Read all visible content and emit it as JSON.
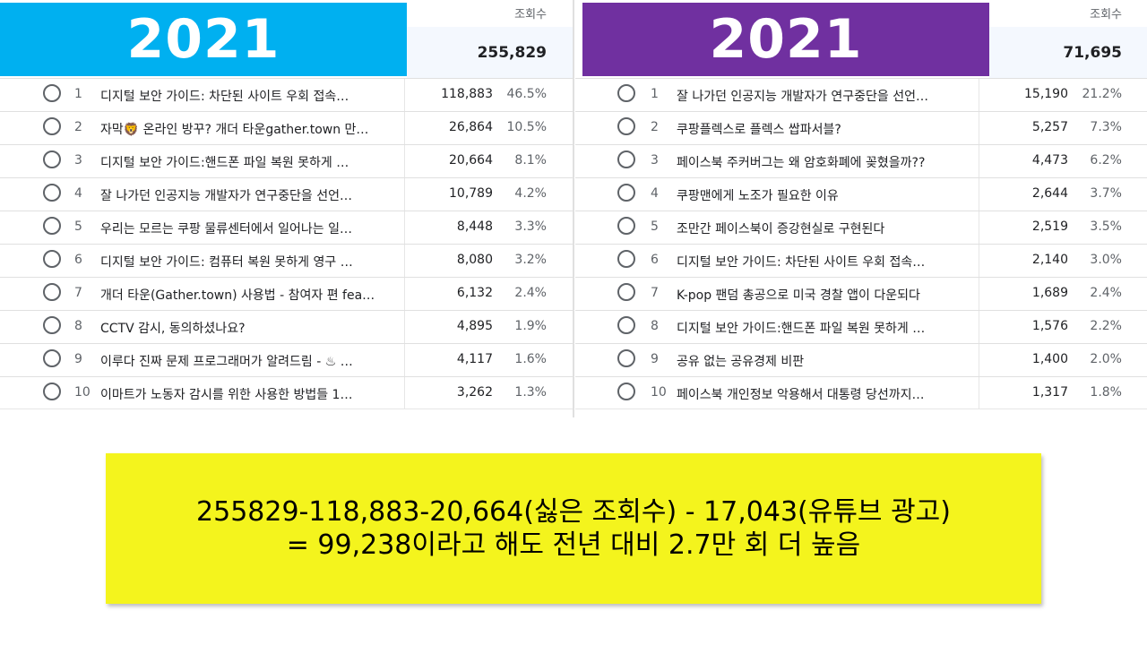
{
  "left": {
    "banner": "2021",
    "banner_color": "#00b0f0",
    "views_label": "조회수",
    "total": "255,829",
    "rows": [
      {
        "rank": "1",
        "title": "디지털 보안 가이드: 차단된 사이트 우회 접속…",
        "views": "118,883",
        "pct": "46.5%"
      },
      {
        "rank": "2",
        "title": "자막🦁 온라인 방꾸? 개더 타운gather.town 만…",
        "views": "26,864",
        "pct": "10.5%"
      },
      {
        "rank": "3",
        "title": "디지털 보안 가이드:핸드폰 파일 복원 못하게 …",
        "views": "20,664",
        "pct": "8.1%"
      },
      {
        "rank": "4",
        "title": "잘 나가던 인공지능 개발자가 연구중단을 선언…",
        "views": "10,789",
        "pct": "4.2%"
      },
      {
        "rank": "5",
        "title": "우리는 모르는 쿠팡 물류센터에서 일어나는 일…",
        "views": "8,448",
        "pct": "3.3%"
      },
      {
        "rank": "6",
        "title": "디지털 보안 가이드: 컴퓨터 복원 못하게 영구 …",
        "views": "8,080",
        "pct": "3.2%"
      },
      {
        "rank": "7",
        "title": "개더 타운(Gather.town) 사용법 - 참여자 편 fea…",
        "views": "6,132",
        "pct": "2.4%"
      },
      {
        "rank": "8",
        "title": "CCTV 감시, 동의하셨나요?",
        "views": "4,895",
        "pct": "1.9%"
      },
      {
        "rank": "9",
        "title": "이루다 진짜 문제 프로그래머가 알려드림 - ♨ …",
        "views": "4,117",
        "pct": "1.6%"
      },
      {
        "rank": "10",
        "title": "이마트가 노동자 감시를 위한 사용한 방법들 1…",
        "views": "3,262",
        "pct": "1.3%"
      }
    ]
  },
  "right": {
    "banner": "2021",
    "banner_color": "#7030a0",
    "views_label": "조회수",
    "total": "71,695",
    "rows": [
      {
        "rank": "1",
        "title": "잘 나가던 인공지능 개발자가 연구중단을 선언…",
        "views": "15,190",
        "pct": "21.2%"
      },
      {
        "rank": "2",
        "title": "쿠팡플렉스로 플렉스 쌉파서블?",
        "views": "5,257",
        "pct": "7.3%"
      },
      {
        "rank": "3",
        "title": "페이스북 주커버그는 왜 암호화폐에 꽂혔을까??",
        "views": "4,473",
        "pct": "6.2%"
      },
      {
        "rank": "4",
        "title": "쿠팡맨에게 노조가 필요한 이유",
        "views": "2,644",
        "pct": "3.7%"
      },
      {
        "rank": "5",
        "title": "조만간 페이스북이 증강현실로 구현된다",
        "views": "2,519",
        "pct": "3.5%"
      },
      {
        "rank": "6",
        "title": "디지털 보안 가이드: 차단된 사이트 우회 접속…",
        "views": "2,140",
        "pct": "3.0%"
      },
      {
        "rank": "7",
        "title": "K-pop 팬덤 총공으로 미국 경찰 앱이 다운되다",
        "views": "1,689",
        "pct": "2.4%"
      },
      {
        "rank": "8",
        "title": "디지털 보안 가이드:핸드폰 파일 복원 못하게 …",
        "views": "1,576",
        "pct": "2.2%"
      },
      {
        "rank": "9",
        "title": "공유 없는 공유경제 비판",
        "views": "1,400",
        "pct": "2.0%"
      },
      {
        "rank": "10",
        "title": "페이스북 개인정보 악용해서 대통령 당선까지…",
        "views": "1,317",
        "pct": "1.8%"
      }
    ]
  },
  "note": {
    "line1": "255829-118,883-20,664(싫은 조회수) - 17,043(유튜브 광고)",
    "line2": "= 99,238이라고 해도 전년 대비 2.7만 회 더 높음",
    "background": "#f4f41d"
  }
}
